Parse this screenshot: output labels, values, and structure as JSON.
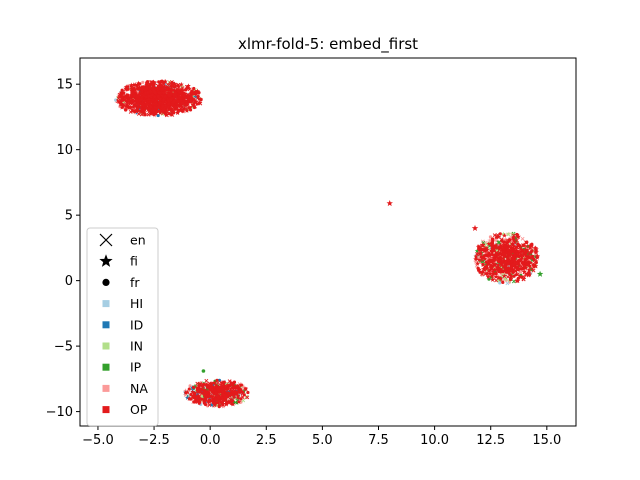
{
  "chart_data": {
    "type": "scatter",
    "title": "xlmr-fold-5: embed_first",
    "xlabel": "",
    "ylabel": "",
    "xlim": [
      -5.8,
      16.3
    ],
    "ylim": [
      -11.1,
      17.0
    ],
    "x_ticks": [
      -5.0,
      -2.5,
      0.0,
      2.5,
      5.0,
      7.5,
      10.0,
      12.5,
      15.0
    ],
    "x_tick_labels": [
      "−5.0",
      "−2.5",
      "0.0",
      "2.5",
      "5.0",
      "7.5",
      "10.0",
      "12.5",
      "15.0"
    ],
    "y_ticks": [
      -10,
      -5,
      0,
      5,
      10,
      15
    ],
    "y_tick_labels": [
      "−10",
      "−5",
      "0",
      "5",
      "10",
      "15"
    ],
    "grid": false,
    "legend_position": "lower-left",
    "legend": {
      "markers": [
        {
          "label": "en",
          "shape": "x"
        },
        {
          "label": "fi",
          "shape": "star"
        },
        {
          "label": "fr",
          "shape": "circle"
        }
      ],
      "classes": [
        {
          "label": "HI",
          "color": "#a6cee3"
        },
        {
          "label": "ID",
          "color": "#1f78b4"
        },
        {
          "label": "IN",
          "color": "#b2df8a"
        },
        {
          "label": "IP",
          "color": "#33a02c"
        },
        {
          "label": "NA",
          "color": "#fb9a99"
        },
        {
          "label": "OP",
          "color": "#e31a1c"
        }
      ]
    },
    "clusters": [
      {
        "cx": -2.3,
        "cy": 13.9,
        "rx": 1.9,
        "ry": 1.3,
        "n": 1300,
        "mix": {
          "OP": 0.72,
          "NA": 0.14,
          "IN": 0.07,
          "ID": 0.04,
          "HI": 0.03
        }
      },
      {
        "cx": 13.2,
        "cy": 1.7,
        "rx": 1.4,
        "ry": 1.9,
        "n": 900,
        "mix": {
          "OP": 0.55,
          "NA": 0.3,
          "IP": 0.08,
          "IN": 0.05,
          "HI": 0.02
        }
      },
      {
        "cx": 0.3,
        "cy": -8.6,
        "rx": 1.4,
        "ry": 1.0,
        "n": 600,
        "mix": {
          "OP": 0.5,
          "NA": 0.25,
          "IP": 0.12,
          "IN": 0.05,
          "ID": 0.06,
          "HI": 0.02
        }
      }
    ],
    "outliers": [
      {
        "x": 8.0,
        "y": 5.9,
        "class": "OP",
        "shape": "star"
      },
      {
        "x": 11.8,
        "y": 4.0,
        "class": "OP",
        "shape": "star"
      },
      {
        "x": 14.7,
        "y": 0.5,
        "class": "IP",
        "shape": "star"
      },
      {
        "x": -0.3,
        "y": -6.9,
        "class": "IP",
        "shape": "circle"
      }
    ]
  }
}
